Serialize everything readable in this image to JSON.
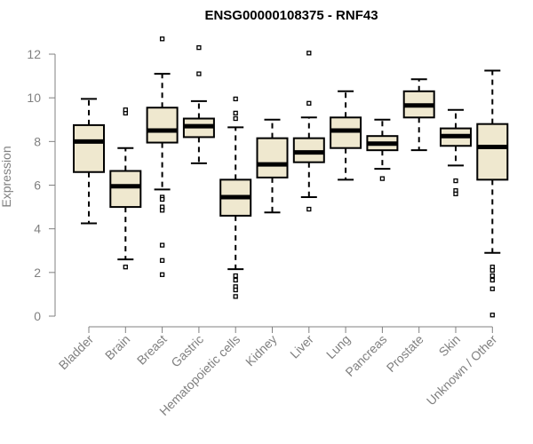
{
  "chart_data": {
    "type": "boxplot",
    "title": "ENSG00000108375 - RNF43",
    "xlabel": "",
    "ylabel": "Expression",
    "ylim": [
      0,
      12.5
    ],
    "yticks": [
      0,
      2,
      4,
      6,
      8,
      10,
      12
    ],
    "grid": false,
    "box_color": "#efe8cf",
    "stroke_color": "#000000",
    "axis_color": "#808080",
    "categories": [
      "Bladder",
      "Brain",
      "Breast",
      "Gastric",
      "Hematopoietic cells",
      "Kidney",
      "Liver",
      "Lung",
      "Pancreas",
      "Prostate",
      "Skin",
      "Unknown / Other"
    ],
    "boxes": [
      {
        "min": 4.25,
        "q1": 6.6,
        "median": 8.0,
        "q3": 8.75,
        "max": 9.95,
        "outliers": []
      },
      {
        "min": 2.6,
        "q1": 5.0,
        "median": 5.95,
        "q3": 6.65,
        "max": 7.7,
        "outliers": [
          9.3,
          9.45,
          2.25
        ]
      },
      {
        "min": 5.8,
        "q1": 7.95,
        "median": 8.5,
        "q3": 9.55,
        "max": 11.1,
        "outliers": [
          12.7,
          5.45,
          5.35,
          5.0,
          4.85,
          3.25,
          2.55,
          1.9
        ]
      },
      {
        "min": 7.0,
        "q1": 8.2,
        "median": 8.7,
        "q3": 9.05,
        "max": 9.85,
        "outliers": [
          12.3,
          11.1
        ]
      },
      {
        "min": 2.15,
        "q1": 4.6,
        "median": 5.45,
        "q3": 6.25,
        "max": 8.65,
        "outliers": [
          9.95,
          9.3,
          9.05,
          1.85,
          1.65,
          1.35,
          1.2,
          0.9
        ]
      },
      {
        "min": 4.75,
        "q1": 6.35,
        "median": 6.95,
        "q3": 8.15,
        "max": 9.0,
        "outliers": []
      },
      {
        "min": 5.45,
        "q1": 7.05,
        "median": 7.5,
        "q3": 8.15,
        "max": 9.1,
        "outliers": [
          12.05,
          9.75,
          4.9
        ]
      },
      {
        "min": 6.25,
        "q1": 7.7,
        "median": 8.5,
        "q3": 9.1,
        "max": 10.3,
        "outliers": []
      },
      {
        "min": 6.75,
        "q1": 7.6,
        "median": 7.9,
        "q3": 8.25,
        "max": 9.0,
        "outliers": [
          6.3
        ]
      },
      {
        "min": 7.6,
        "q1": 9.1,
        "median": 9.65,
        "q3": 10.3,
        "max": 10.85,
        "outliers": []
      },
      {
        "min": 6.9,
        "q1": 7.8,
        "median": 8.25,
        "q3": 8.6,
        "max": 9.45,
        "outliers": [
          6.2,
          5.75,
          5.6
        ]
      },
      {
        "min": 2.9,
        "q1": 6.25,
        "median": 7.75,
        "q3": 8.8,
        "max": 11.25,
        "outliers": [
          2.25,
          2.1,
          1.85,
          1.65,
          1.25,
          0.05
        ]
      }
    ]
  }
}
